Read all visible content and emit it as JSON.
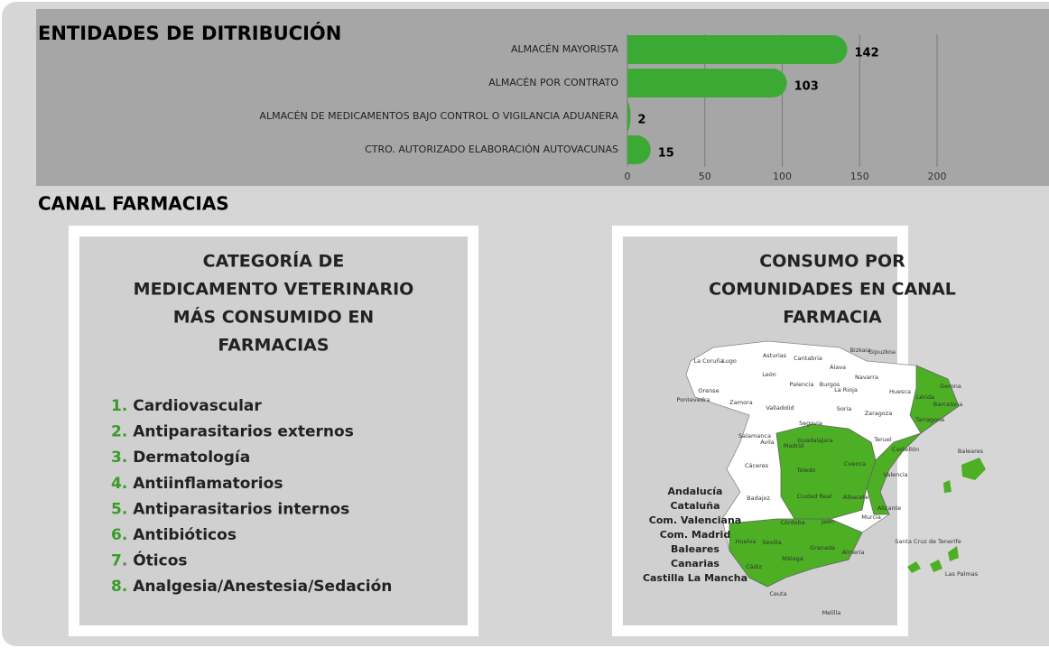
{
  "chart_data": {
    "type": "bar",
    "orientation": "horizontal",
    "title": "ENTIDADES DE DITRIBUCIÓN",
    "categories": [
      "ALMACÉN MAYORISTA",
      "ALMACÉN POR CONTRATO",
      "ALMACÉN DE MEDICAMENTOS BAJO CONTROL O VIGILANCIA ADUANERA",
      "CTRO. AUTORIZADO ELABORACIÓN AUTOVACUNAS"
    ],
    "values": [
      142,
      103,
      2,
      15
    ],
    "color": "#3aaa35",
    "xlim": [
      0,
      200
    ],
    "xticks": [
      0,
      50,
      100,
      150,
      200
    ],
    "grid": true
  },
  "section_title": "CANAL FARMACIAS",
  "categories_panel": {
    "title": [
      "CATEGORÍA DE",
      "MEDICAMENTO VETERINARIO",
      "MÁS CONSUMIDO EN",
      "FARMACIAS"
    ],
    "items": [
      {
        "number": "1.",
        "text": "Cardiovascular"
      },
      {
        "number": "2.",
        "text": "Antiparasitarios externos"
      },
      {
        "number": "3.",
        "text": "Dermatología"
      },
      {
        "number": "4.",
        "text": "Antiinflamatorios"
      },
      {
        "number": "5.",
        "text": "Antiparasitarios internos"
      },
      {
        "number": "6.",
        "text": "Antibióticos"
      },
      {
        "number": "7.",
        "text": "Óticos"
      },
      {
        "number": "8.",
        "text": "Analgesia/Anestesia/Sedación"
      }
    ]
  },
  "map_panel": {
    "title": [
      "CONSUMO POR",
      "COMUNIDADES EN CANAL",
      "FARMACIA"
    ],
    "highlighted": [
      "Andalucía",
      "Cataluña",
      "Com. Valenciana",
      "Com. Madrid",
      "Baleares",
      "Canarias",
      "Castilla La Mancha"
    ],
    "provinces": [
      "Bizkaia",
      "Gipuzkoa",
      "Asturias",
      "Cantabria",
      "Álava",
      "La Coruña",
      "Lugo",
      "León",
      "Navarra",
      "Palencia",
      "Burgos",
      "La Rioja",
      "Huesca",
      "Gerona",
      "Orense",
      "Pontevedra",
      "Zamora",
      "Valladolid",
      "Soria",
      "Zaragoza",
      "Lérida",
      "Barcelona",
      "Segovia",
      "Tarragona",
      "Teruel",
      "Salamanca",
      "Ávila",
      "Guadalajara",
      "Madrid",
      "Castellón",
      "Cáceres",
      "Toledo",
      "Cuenca",
      "Valencia",
      "Baleares",
      "Badajoz",
      "Ciudad Real",
      "Albacete",
      "Alicante",
      "Murcia",
      "Córdoba",
      "Jaén",
      "Huelva",
      "Sevilla",
      "Granada",
      "Almería",
      "Santa Cruz de Tenerife",
      "Cádiz",
      "Málaga",
      "Las Palmas",
      "Ceuta",
      "Melilla"
    ]
  }
}
